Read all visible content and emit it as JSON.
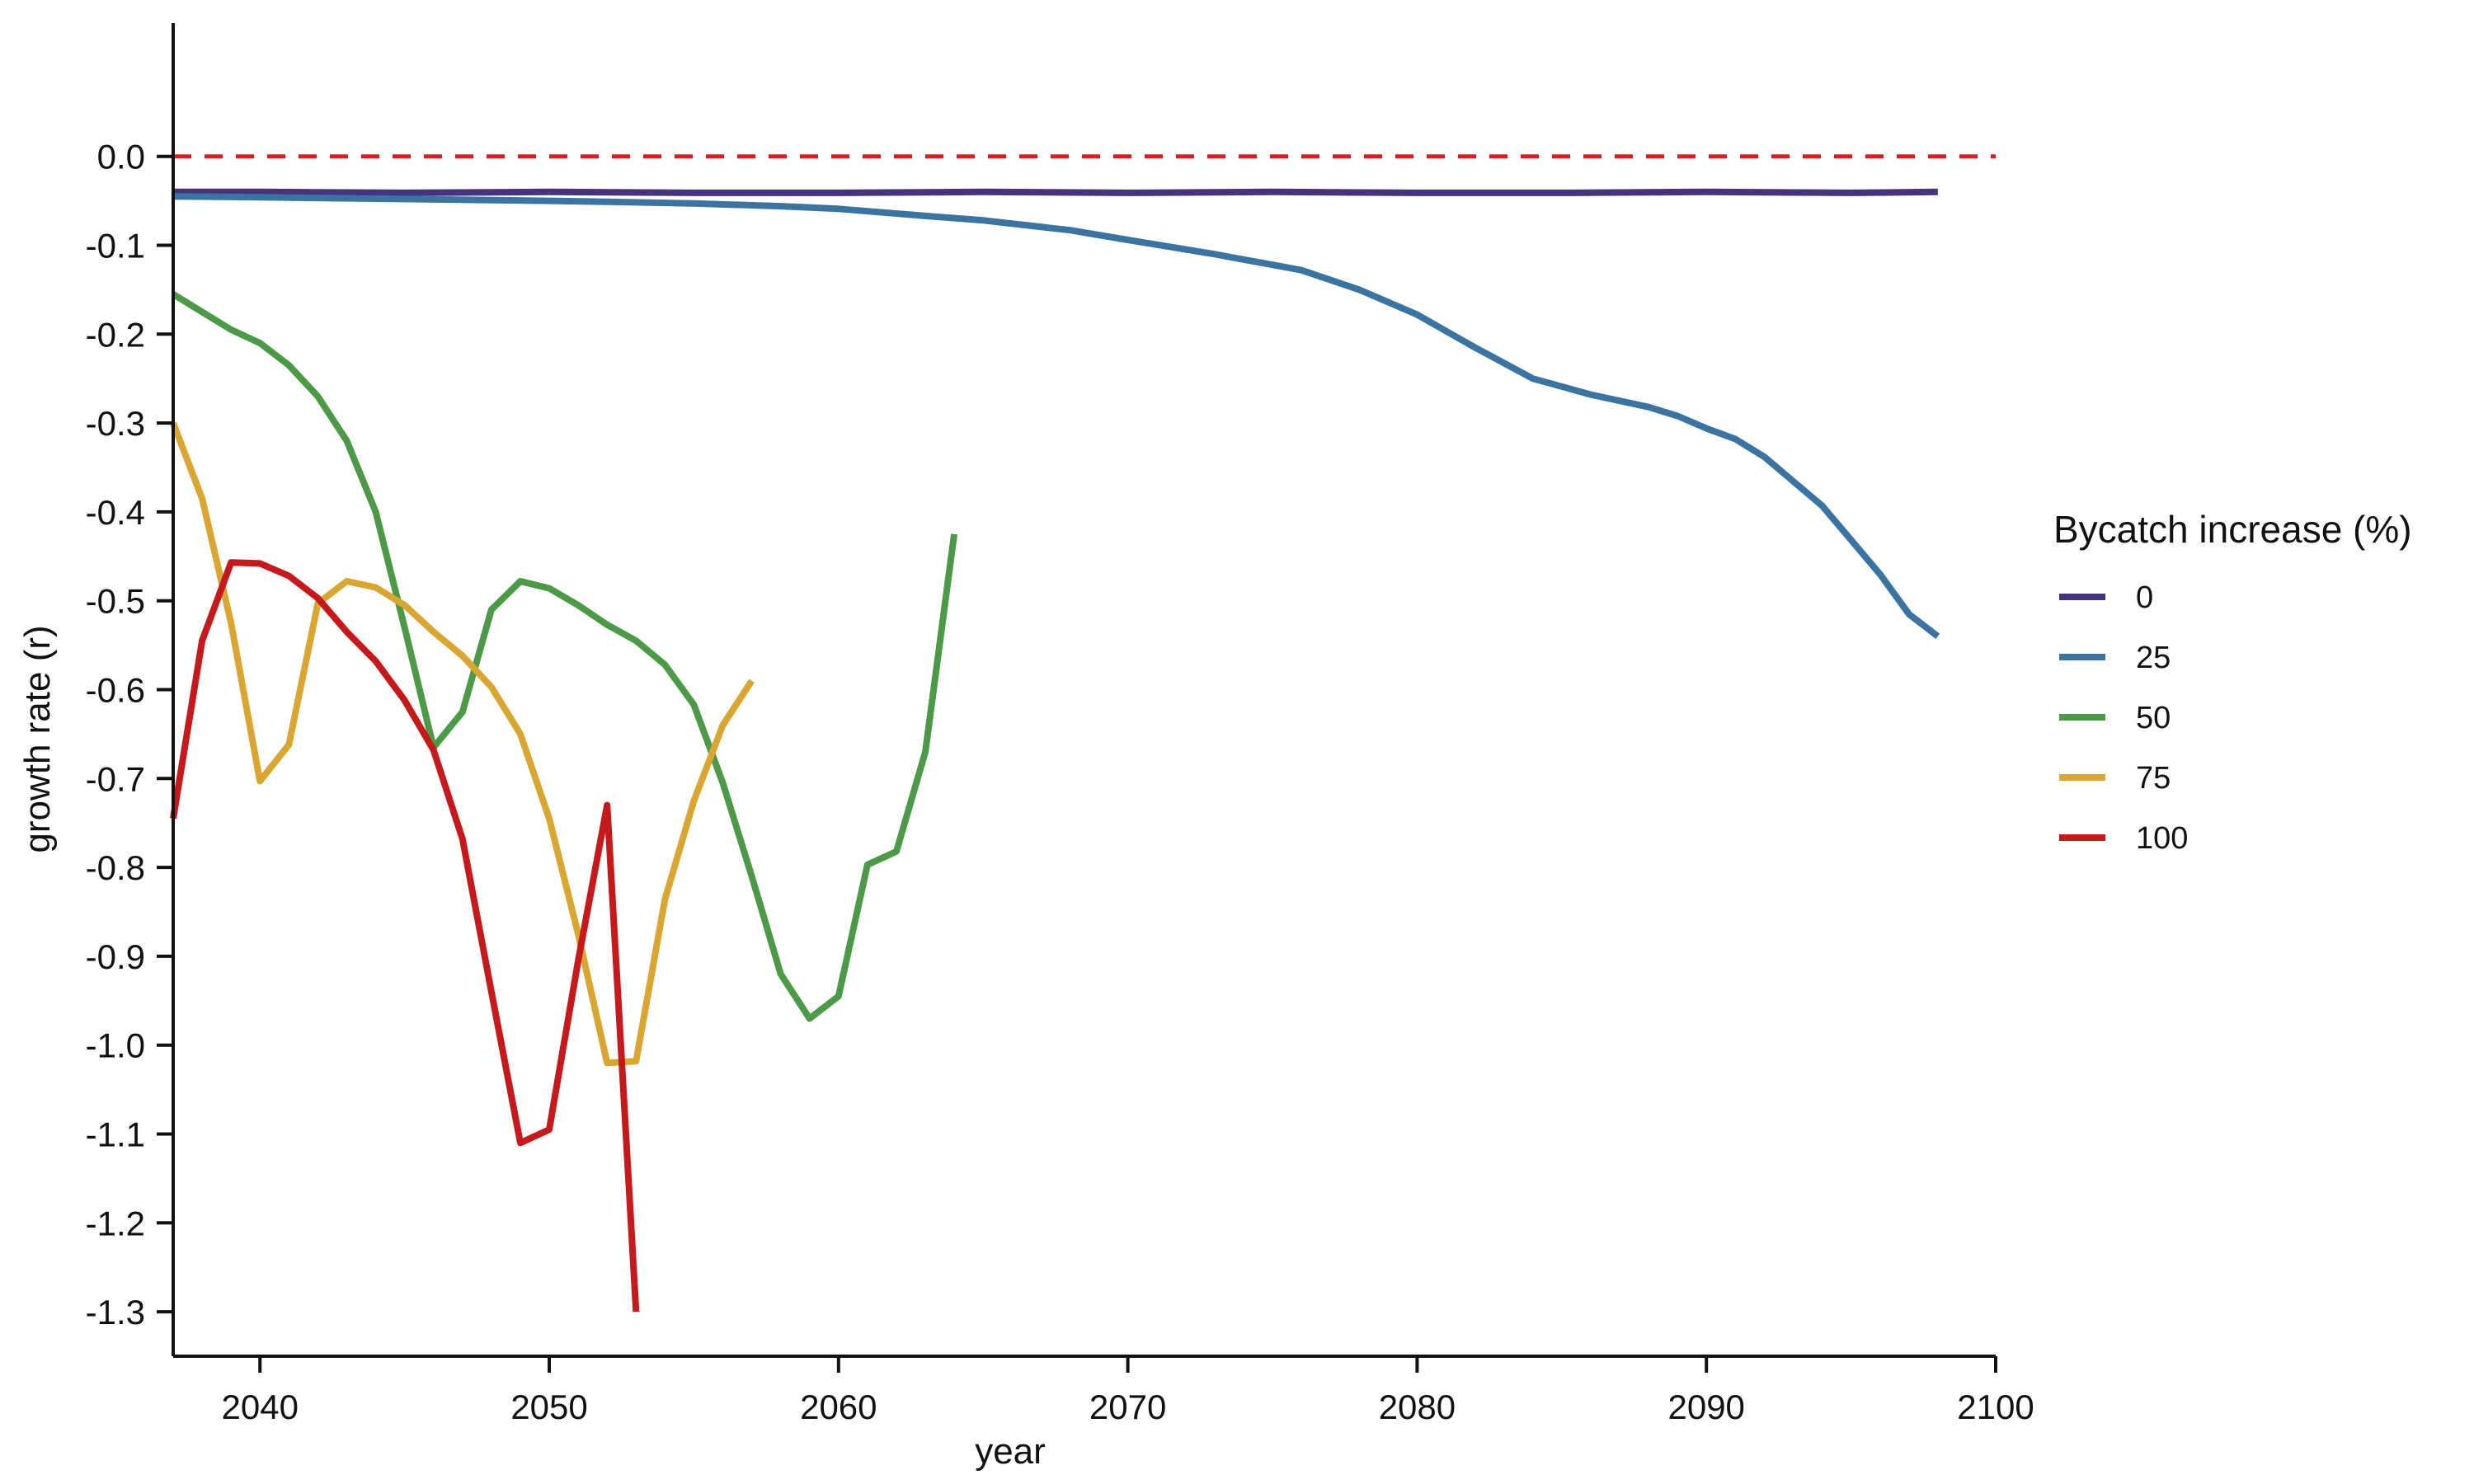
{
  "chart_data": {
    "type": "line",
    "title": "",
    "xlabel": "year",
    "ylabel": "growth rate (r)",
    "xlim": [
      2037,
      2100
    ],
    "ylim": [
      -1.35,
      0.15
    ],
    "xticks": [
      "2040",
      "2050",
      "2060",
      "2070",
      "2080",
      "2090",
      "2100"
    ],
    "yticks": [
      "0.0",
      "-0.1",
      "-0.2",
      "-0.3",
      "-0.4",
      "-0.5",
      "-0.6",
      "-0.7",
      "-0.8",
      "-0.9",
      "-1.0",
      "-1.1",
      "-1.2",
      "-1.3"
    ],
    "grid": false,
    "reference_line": {
      "y": 0.0,
      "color": "#e31a1c",
      "style": "dashed"
    },
    "legend": {
      "title": "Bycatch increase (%)",
      "position": "right"
    },
    "series": [
      {
        "name": "0",
        "color": "#46337e",
        "x": [
          2037,
          2040,
          2045,
          2050,
          2055,
          2060,
          2065,
          2070,
          2075,
          2080,
          2085,
          2090,
          2095,
          2098
        ],
        "y": [
          -0.04,
          -0.04,
          -0.041,
          -0.04,
          -0.041,
          -0.041,
          -0.04,
          -0.041,
          -0.04,
          -0.041,
          -0.041,
          -0.04,
          -0.041,
          -0.04
        ]
      },
      {
        "name": "25",
        "color": "#3b74a0",
        "x": [
          2037,
          2040,
          2045,
          2050,
          2052,
          2055,
          2058,
          2060,
          2063,
          2065,
          2068,
          2070,
          2073,
          2076,
          2078,
          2080,
          2082,
          2084,
          2086,
          2088,
          2089,
          2090,
          2091,
          2092,
          2094,
          2096,
          2097,
          2098
        ],
        "y": [
          -0.045,
          -0.046,
          -0.048,
          -0.05,
          -0.051,
          -0.053,
          -0.056,
          -0.059,
          -0.067,
          -0.072,
          -0.083,
          -0.094,
          -0.11,
          -0.128,
          -0.15,
          -0.178,
          -0.215,
          -0.25,
          -0.268,
          -0.282,
          -0.292,
          -0.306,
          -0.318,
          -0.338,
          -0.393,
          -0.47,
          -0.515,
          -0.54
        ]
      },
      {
        "name": "50",
        "color": "#4c9a47",
        "x": [
          2037,
          2038,
          2039,
          2040,
          2041,
          2042,
          2043,
          2044,
          2045,
          2046,
          2047,
          2048,
          2049,
          2050,
          2051,
          2052,
          2053,
          2054,
          2055,
          2056,
          2057,
          2058,
          2059,
          2060,
          2061,
          2062,
          2063,
          2064
        ],
        "y": [
          -0.155,
          -0.175,
          -0.195,
          -0.21,
          -0.235,
          -0.27,
          -0.32,
          -0.4,
          -0.53,
          -0.665,
          -0.625,
          -0.51,
          -0.478,
          -0.486,
          -0.505,
          -0.527,
          -0.545,
          -0.572,
          -0.617,
          -0.705,
          -0.81,
          -0.92,
          -0.97,
          -0.945,
          -0.797,
          -0.782,
          -0.67,
          -0.425
        ]
      },
      {
        "name": "75",
        "color": "#d9a632",
        "x": [
          2037,
          2038,
          2039,
          2040,
          2041,
          2042,
          2043,
          2044,
          2045,
          2046,
          2047,
          2048,
          2049,
          2050,
          2051,
          2052,
          2053,
          2054,
          2055,
          2056,
          2057
        ],
        "y": [
          -0.3,
          -0.385,
          -0.525,
          -0.703,
          -0.662,
          -0.503,
          -0.478,
          -0.485,
          -0.505,
          -0.535,
          -0.562,
          -0.597,
          -0.65,
          -0.745,
          -0.875,
          -1.02,
          -1.018,
          -0.836,
          -0.725,
          -0.64,
          -0.59
        ]
      },
      {
        "name": "100",
        "color": "#c5191c",
        "x": [
          2037,
          2038,
          2039,
          2040,
          2041,
          2042,
          2043,
          2044,
          2045,
          2046,
          2047,
          2048,
          2049,
          2050,
          2051,
          2052,
          2053
        ],
        "y": [
          -0.745,
          -0.545,
          -0.457,
          -0.458,
          -0.472,
          -0.497,
          -0.535,
          -0.568,
          -0.612,
          -0.668,
          -0.768,
          -0.94,
          -1.11,
          -1.095,
          -0.905,
          -0.73,
          -1.3
        ]
      }
    ]
  }
}
